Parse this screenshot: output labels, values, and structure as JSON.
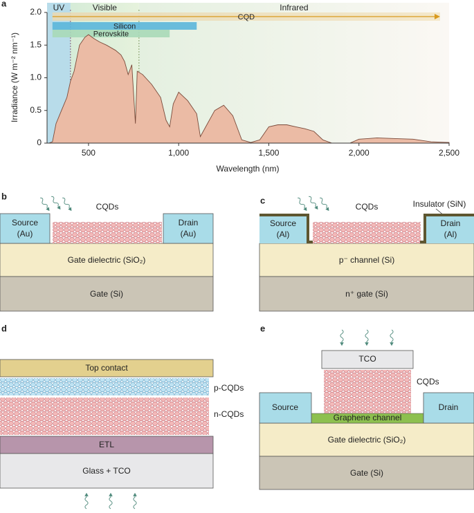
{
  "chart_data": {
    "type": "area",
    "panel_label": "a",
    "x": [
      280,
      300,
      320,
      350,
      380,
      400,
      420,
      450,
      480,
      500,
      530,
      560,
      600,
      650,
      680,
      700,
      720,
      740,
      760,
      770,
      800,
      850,
      900,
      930,
      950,
      970,
      1000,
      1050,
      1100,
      1120,
      1150,
      1200,
      1250,
      1300,
      1350,
      1400,
      1450,
      1500,
      1550,
      1600,
      1650,
      1700,
      1750,
      1800,
      1850,
      1950,
      2000,
      2050,
      2100,
      2200,
      2300,
      2400,
      2500
    ],
    "values": [
      0,
      0.02,
      0.3,
      0.5,
      0.7,
      0.95,
      1.1,
      1.5,
      1.62,
      1.66,
      1.6,
      1.55,
      1.5,
      1.42,
      1.35,
      1.25,
      1.05,
      1.2,
      0.3,
      1.1,
      1.05,
      0.9,
      0.7,
      0.35,
      0.25,
      0.6,
      0.78,
      0.65,
      0.45,
      0.1,
      0.25,
      0.5,
      0.58,
      0.42,
      0.05,
      0.01,
      0.05,
      0.25,
      0.28,
      0.28,
      0.25,
      0.22,
      0.18,
      0.05,
      0,
      0,
      0.06,
      0.07,
      0.08,
      0.07,
      0.06,
      0.02,
      0.01
    ],
    "color": "#ebbba5",
    "xlim": [
      270,
      2500
    ],
    "ylim": [
      0,
      2
    ],
    "xticks": [
      500,
      {
        "value": 1000,
        "label": "1,000"
      },
      {
        "value": 1500,
        "label": "1,500"
      },
      {
        "value": 2000,
        "label": "2,000"
      },
      {
        "value": 2500,
        "label": "2,500"
      }
    ],
    "yticks": [
      0,
      0.5,
      {
        "value": 1,
        "label": "1.0"
      },
      1.5,
      {
        "value": 2,
        "label": "2.0"
      }
    ],
    "xlabel": "Wavelength (nm)",
    "ylabel": "Irradiance (W m⁻² nm⁻¹)",
    "regions": [
      {
        "name": "UV",
        "range": [
          270,
          400
        ]
      },
      {
        "name": "Visible",
        "range": [
          400,
          780
        ]
      },
      {
        "name": "Infrared",
        "range": [
          780,
          2500
        ]
      }
    ],
    "bands": [
      {
        "name": "CQD",
        "range": [
          300,
          2450
        ]
      },
      {
        "name": "Silicon",
        "range": [
          300,
          1100
        ]
      },
      {
        "name": "Perovskite",
        "range": [
          300,
          950
        ]
      }
    ]
  },
  "panels": {
    "b": {
      "label": "b",
      "cqds": "CQDs",
      "source": "Source",
      "source_mat": "(Au)",
      "drain": "Drain",
      "drain_mat": "(Au)",
      "dielectric": "Gate dielectric (SiO₂)",
      "gate": "Gate (Si)"
    },
    "c": {
      "label": "c",
      "insulator": "Insulator (SiN)",
      "cqds": "CQDs",
      "source": "Source",
      "source_mat": "(Al)",
      "drain": "Drain",
      "drain_mat": "(Al)",
      "channel": "p⁻ channel (Si)",
      "gate": "n⁺ gate (Si)"
    },
    "d": {
      "label": "d",
      "top": "Top contact",
      "p": "p-CQDs",
      "n": "n-CQDs",
      "etl": "ETL",
      "glass": "Glass + TCO"
    },
    "e": {
      "label": "e",
      "tco": "TCO",
      "cqds": "CQDs",
      "source": "Source",
      "drain": "Drain",
      "graphene": "Graphene channel",
      "dielectric": "Gate dielectric (SiO₂)",
      "gate": "Gate (Si)"
    }
  }
}
